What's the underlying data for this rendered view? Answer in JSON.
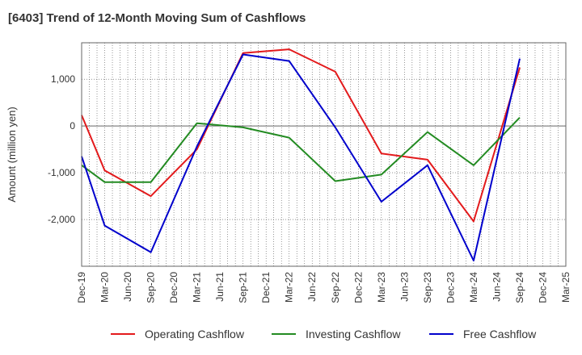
{
  "chart_data": {
    "type": "line",
    "title": "[6403]  Trend of 12-Month Moving Sum of Cashflows",
    "ylabel": "Amount (million yen)",
    "xlabel": "",
    "ylim": [
      -3000,
      1780
    ],
    "grid": true,
    "legend_position": "bottom",
    "y_ticks": [
      1000,
      0,
      -1000,
      -2000
    ],
    "y_tick_labels": [
      "1,000",
      "0",
      "-1,000",
      "-2,000"
    ],
    "categories": [
      "Dec-19",
      "Mar-20",
      "Jun-20",
      "Sep-20",
      "Dec-20",
      "Mar-21",
      "Jun-21",
      "Sep-21",
      "Dec-21",
      "Mar-22",
      "Jun-22",
      "Sep-22",
      "Dec-22",
      "Mar-23",
      "Jun-23",
      "Sep-23",
      "Dec-23",
      "Mar-24",
      "Jun-24",
      "Sep-24",
      "Dec-24",
      "Mar-25"
    ],
    "series": [
      {
        "name": "Operating Cashflow",
        "color": "#e31a1c",
        "points": [
          [
            "Dec-19",
            230
          ],
          [
            "Mar-20",
            -950
          ],
          [
            "Sep-20",
            -1500
          ],
          [
            "Mar-21",
            -500
          ],
          [
            "Sep-21",
            1560
          ],
          [
            "Mar-22",
            1640
          ],
          [
            "Sep-22",
            1160
          ],
          [
            "Mar-23",
            -590
          ],
          [
            "Sep-23",
            -720
          ],
          [
            "Mar-24",
            -2040
          ],
          [
            "Sep-24",
            1250
          ]
        ]
      },
      {
        "name": "Investing Cashflow",
        "color": "#238b22",
        "points": [
          [
            "Dec-19",
            -840
          ],
          [
            "Mar-20",
            -1200
          ],
          [
            "Sep-20",
            -1200
          ],
          [
            "Mar-21",
            60
          ],
          [
            "Sep-21",
            -30
          ],
          [
            "Mar-22",
            -250
          ],
          [
            "Sep-22",
            -1180
          ],
          [
            "Mar-23",
            -1040
          ],
          [
            "Sep-23",
            -130
          ],
          [
            "Mar-24",
            -840
          ],
          [
            "Sep-24",
            180
          ]
        ]
      },
      {
        "name": "Free Cashflow",
        "color": "#0000cc",
        "points": [
          [
            "Dec-19",
            -650
          ],
          [
            "Mar-20",
            -2130
          ],
          [
            "Sep-20",
            -2700
          ],
          [
            "Mar-21",
            -440
          ],
          [
            "Sep-21",
            1530
          ],
          [
            "Mar-22",
            1390
          ],
          [
            "Sep-22",
            -30
          ],
          [
            "Mar-23",
            -1620
          ],
          [
            "Sep-23",
            -840
          ],
          [
            "Mar-24",
            -2880
          ],
          [
            "Sep-24",
            1440
          ]
        ]
      }
    ]
  }
}
